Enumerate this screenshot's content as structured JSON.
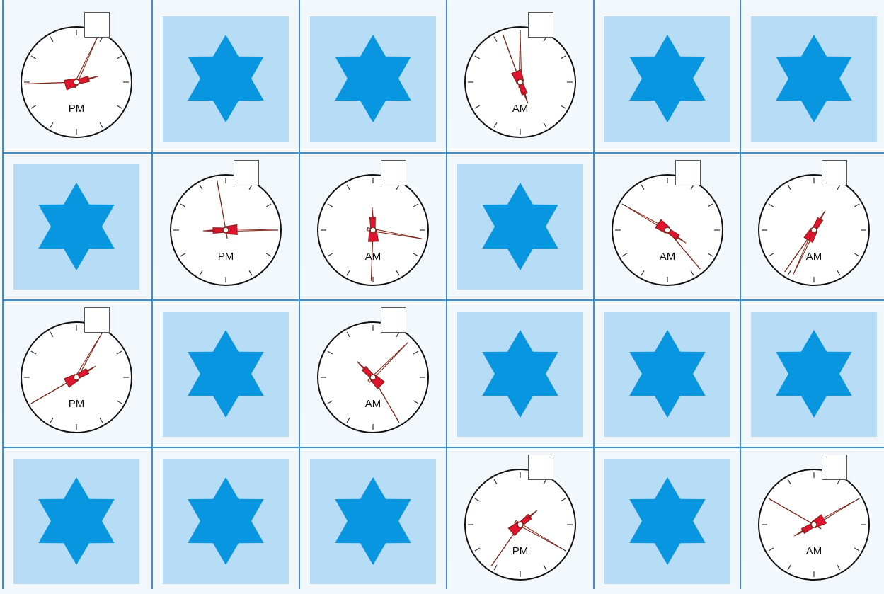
{
  "colors": {
    "grid_line": "#3d8fd0",
    "card": "#b6dcf6",
    "star": "#0796df",
    "cell_bg": "#f2f7fc",
    "hand_fill": "#e0142e",
    "hand_stroke": "#7a2418"
  },
  "icons": {
    "star": "six-point-star-icon",
    "clock": "analog-clock-icon"
  },
  "cells": [
    {
      "row": 1,
      "col": 1,
      "type": "clock",
      "hour_deg": 75,
      "minute_deg": 25,
      "second_deg": 268,
      "label": "PM"
    },
    {
      "row": 1,
      "col": 2,
      "type": "star"
    },
    {
      "row": 1,
      "col": 3,
      "type": "star"
    },
    {
      "row": 1,
      "col": 4,
      "type": "clock",
      "hour_deg": 160,
      "minute_deg": 0,
      "second_deg": 340,
      "label": "AM"
    },
    {
      "row": 1,
      "col": 5,
      "type": "star"
    },
    {
      "row": 1,
      "col": 6,
      "type": "star"
    },
    {
      "row": 2,
      "col": 1,
      "type": "star"
    },
    {
      "row": 2,
      "col": 2,
      "type": "clock",
      "hour_deg": 268,
      "minute_deg": 90,
      "second_deg": 350,
      "label": "PM"
    },
    {
      "row": 2,
      "col": 3,
      "type": "clock",
      "hour_deg": 358,
      "minute_deg": 100,
      "second_deg": 182,
      "label": "AM"
    },
    {
      "row": 2,
      "col": 4,
      "type": "star"
    },
    {
      "row": 2,
      "col": 5,
      "type": "clock",
      "hour_deg": 125,
      "minute_deg": 300,
      "second_deg": 140,
      "label": "AM"
    },
    {
      "row": 2,
      "col": 6,
      "type": "clock",
      "hour_deg": 30,
      "minute_deg": 205,
      "second_deg": 215,
      "label": "AM"
    },
    {
      "row": 3,
      "col": 1,
      "type": "clock",
      "hour_deg": 60,
      "minute_deg": 30,
      "second_deg": 240,
      "label": "PM"
    },
    {
      "row": 3,
      "col": 2,
      "type": "star"
    },
    {
      "row": 3,
      "col": 3,
      "type": "clock",
      "hour_deg": 315,
      "minute_deg": 45,
      "second_deg": 150,
      "label": "AM"
    },
    {
      "row": 3,
      "col": 4,
      "type": "star"
    },
    {
      "row": 3,
      "col": 5,
      "type": "star"
    },
    {
      "row": 3,
      "col": 6,
      "type": "star"
    },
    {
      "row": 4,
      "col": 1,
      "type": "star"
    },
    {
      "row": 4,
      "col": 2,
      "type": "star"
    },
    {
      "row": 4,
      "col": 3,
      "type": "star"
    },
    {
      "row": 4,
      "col": 4,
      "type": "clock",
      "hour_deg": 50,
      "minute_deg": 120,
      "second_deg": 215,
      "label": "PM"
    },
    {
      "row": 4,
      "col": 5,
      "type": "star"
    },
    {
      "row": 4,
      "col": 6,
      "type": "clock",
      "hour_deg": 240,
      "minute_deg": 60,
      "second_deg": 300,
      "label": "AM"
    }
  ]
}
